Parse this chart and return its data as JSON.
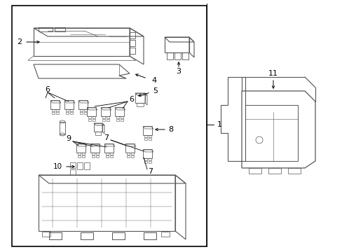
{
  "background_color": "#ffffff",
  "border_color": "#000000",
  "line_color": "#555555",
  "text_color": "#000000",
  "fig_width": 4.89,
  "fig_height": 3.6,
  "dpi": 100
}
